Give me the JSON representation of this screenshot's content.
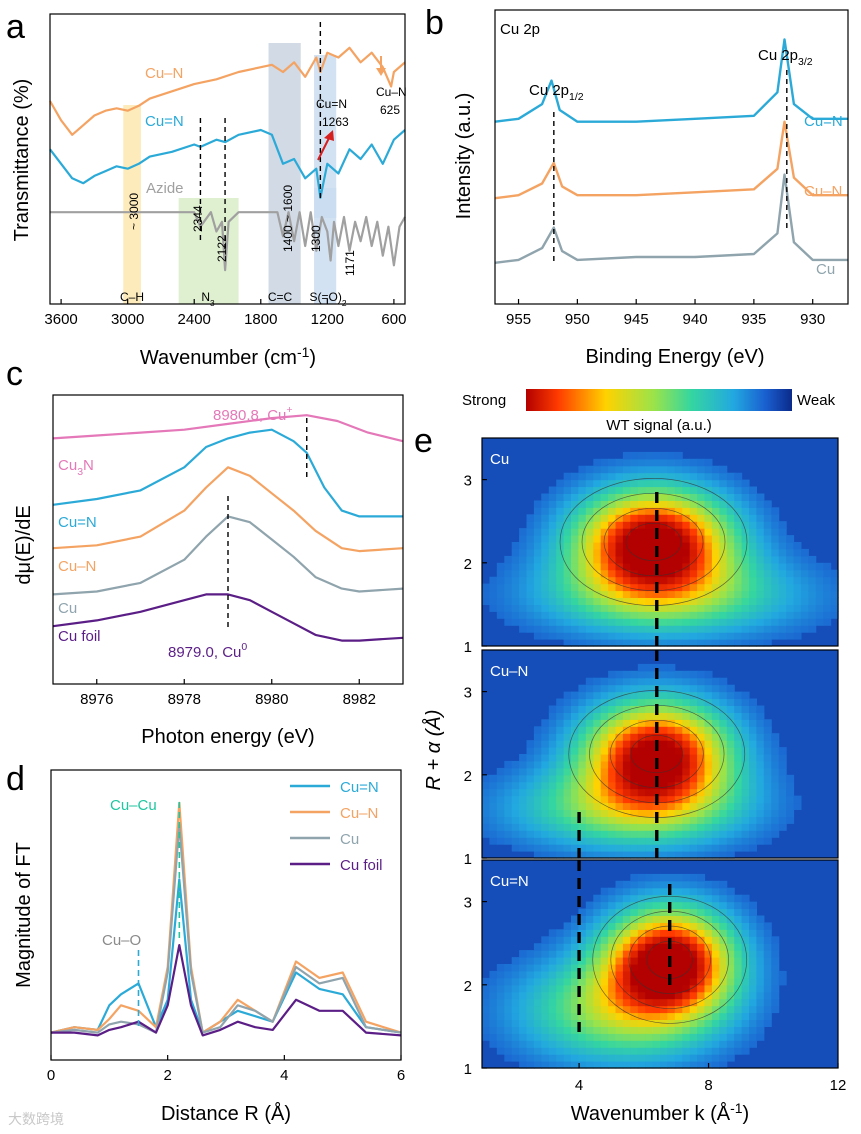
{
  "figure": {
    "watermark": "大数跨境"
  },
  "chart_data": [
    {
      "panel": "a",
      "type": "line",
      "xlabel": "Wavenumber (cm",
      "xlabel_sup": "-1",
      "xlabel_end": ")",
      "ylabel": "Transmittance (%)",
      "xlim": [
        3700,
        500
      ],
      "xticks": [
        3600,
        3000,
        2400,
        1800,
        1200,
        600
      ],
      "series": [
        {
          "name": "Cu–N",
          "color": "#F4A362",
          "x": [
            3700,
            3600,
            3500,
            3400,
            3300,
            3200,
            3100,
            3000,
            2900,
            2800,
            2600,
            2400,
            2200,
            2000,
            1800,
            1700,
            1600,
            1500,
            1400,
            1300,
            1263,
            1200,
            1100,
            1000,
            900,
            800,
            700,
            625,
            600,
            500
          ],
          "y": [
            64,
            56,
            50,
            54,
            58,
            60,
            61,
            60,
            62,
            65,
            68,
            71,
            73,
            76,
            78,
            79,
            76,
            80,
            74,
            82,
            76,
            84,
            82,
            86,
            80,
            84,
            78,
            70,
            76,
            80
          ]
        },
        {
          "name": "Cu=N",
          "color": "#2BAAD8",
          "x": [
            3700,
            3600,
            3500,
            3400,
            3300,
            3200,
            3100,
            3000,
            2900,
            2800,
            2600,
            2400,
            2344,
            2200,
            2122,
            2000,
            1800,
            1700,
            1600,
            1500,
            1400,
            1300,
            1263,
            1200,
            1100,
            1000,
            900,
            800,
            700,
            600,
            500
          ],
          "y": [
            44,
            38,
            32,
            30,
            33,
            35,
            37,
            36,
            38,
            41,
            43,
            46,
            45,
            48,
            47,
            50,
            52,
            50,
            38,
            40,
            32,
            36,
            24,
            38,
            34,
            44,
            40,
            46,
            38,
            48,
            52
          ]
        },
        {
          "name": "Azide",
          "color": "#A0A0A0",
          "x": [
            3700,
            3400,
            3000,
            2700,
            2400,
            2344,
            2250,
            2200,
            2150,
            2122,
            2090,
            2000,
            1800,
            1650,
            1600,
            1550,
            1500,
            1450,
            1400,
            1350,
            1300,
            1250,
            1200,
            1171,
            1140,
            1100,
            1050,
            1000,
            950,
            900,
            850,
            800,
            750,
            700,
            650,
            600,
            550,
            500
          ],
          "y": [
            18,
            18,
            18,
            18,
            18,
            12,
            18,
            10,
            14,
            -6,
            14,
            18,
            18,
            18,
            8,
            18,
            6,
            18,
            4,
            18,
            2,
            16,
            10,
            -2,
            14,
            4,
            16,
            2,
            14,
            6,
            16,
            4,
            14,
            0,
            12,
            -4,
            12,
            16
          ]
        }
      ],
      "series_labels": [
        "Cu–N",
        "Cu=N",
        "Azide"
      ],
      "bands": [
        {
          "label": "C–H",
          "annotation": "~ 3000",
          "color": "#FDE7B0"
        },
        {
          "label": "N",
          "label_sub": "3",
          "annotation": "2344",
          "annotation2": "2122",
          "color": "#D9EDC8"
        },
        {
          "label": "C=C",
          "annotation": "1400 ~ 1600",
          "color": "#C9D3E0"
        },
        {
          "label": "S(=O)",
          "label_sub": "2",
          "annotation": "1300",
          "annotation2": "1171",
          "color": "#CBDDF0"
        }
      ],
      "annotations": {
        "cu_n_bond": "Cu–N",
        "cu_n_bond_value": "625",
        "cu_dn_bond": "Cu=N",
        "cu_dn_bond_value": "1263"
      }
    },
    {
      "panel": "b",
      "type": "line",
      "title": "Cu 2p",
      "xlabel": "Binding Energy (eV)",
      "ylabel": "Intensity (a.u.)",
      "xlim": [
        957,
        927
      ],
      "xticks": [
        955,
        950,
        945,
        940,
        935,
        930
      ],
      "peak_labels": {
        "p12": "Cu 2p",
        "p12_sub": "1/2",
        "p32": "Cu 2p",
        "p32_sub": "3/2"
      },
      "series": [
        {
          "name": "Cu=N",
          "color": "#2BAAD8",
          "x": [
            957,
            955,
            953,
            952.2,
            951.5,
            950,
            945,
            940,
            935,
            933,
            932.4,
            931.6,
            930,
            927
          ],
          "y": [
            52,
            53,
            58,
            66,
            56,
            52,
            52,
            53,
            54,
            62,
            80,
            58,
            53,
            53
          ]
        },
        {
          "name": "Cu–N",
          "color": "#F4A362",
          "x": [
            957,
            955,
            953,
            952,
            951.3,
            950,
            945,
            940,
            935,
            933,
            932.4,
            931.6,
            930,
            927
          ],
          "y": [
            26,
            27,
            31,
            38,
            30,
            27,
            27,
            28,
            29,
            36,
            52,
            33,
            27,
            27
          ]
        },
        {
          "name": "Cu",
          "color": "#8FA4AD",
          "x": [
            957,
            955,
            953,
            952,
            951.3,
            950,
            945,
            940,
            935,
            933,
            932.4,
            931.6,
            930,
            927
          ],
          "y": [
            4,
            5,
            9,
            16,
            8,
            5,
            6,
            6,
            7,
            14,
            34,
            11,
            5,
            5
          ]
        }
      ]
    },
    {
      "panel": "c",
      "type": "line",
      "xlabel": "Photon energy (eV)",
      "ylabel": "dμ(E)/dE",
      "xlim": [
        8975,
        8983
      ],
      "xticks": [
        8976,
        8978,
        8980,
        8982
      ],
      "annotations": {
        "cu_plus": "8980.8, Cu",
        "cu_plus_sup": "+",
        "cu_zero": "8979.0, Cu",
        "cu_zero_sup": "0"
      },
      "series": [
        {
          "name": "Cu",
          "name_sub": "3",
          "name_end": "N",
          "color": "#E478B8",
          "x": [
            8975,
            8976,
            8977,
            8978,
            8979,
            8980,
            8980.8,
            8981.5,
            8982.2,
            8983
          ],
          "y": [
            85,
            86,
            87,
            88,
            90,
            92,
            93,
            91,
            87,
            84
          ]
        },
        {
          "name": "Cu=N",
          "color": "#2BAAD8",
          "x": [
            8975,
            8976,
            8977,
            8978,
            8978.5,
            8979,
            8979.5,
            8980,
            8980.5,
            8980.8,
            8981.2,
            8981.6,
            8982,
            8983
          ],
          "y": [
            62,
            64,
            67,
            75,
            82,
            85,
            87,
            88,
            84,
            80,
            68,
            60,
            58,
            58
          ]
        },
        {
          "name": "Cu–N",
          "color": "#F4A362",
          "x": [
            8975,
            8976,
            8977,
            8978,
            8978.5,
            8979,
            8979.5,
            8980,
            8980.5,
            8981,
            8981.6,
            8982,
            8983
          ],
          "y": [
            47,
            48,
            51,
            60,
            68,
            75,
            72,
            66,
            60,
            53,
            47,
            46,
            47
          ]
        },
        {
          "name": "Cu",
          "color": "#8FA4AD",
          "x": [
            8975,
            8976,
            8977,
            8978,
            8978.5,
            8979,
            8979.5,
            8980,
            8980.5,
            8981,
            8981.6,
            8982,
            8983
          ],
          "y": [
            31,
            32,
            35,
            43,
            51,
            58,
            56,
            50,
            44,
            37,
            33,
            32,
            33
          ]
        },
        {
          "name": "Cu foil",
          "color": "#5B1E86",
          "x": [
            8975,
            8976,
            8977,
            8978,
            8978.5,
            8979,
            8979.5,
            8980,
            8980.5,
            8981,
            8981.6,
            8982,
            8983
          ],
          "y": [
            20,
            22,
            25,
            29,
            31,
            31,
            29,
            25,
            21,
            17,
            15,
            15,
            16
          ]
        }
      ]
    },
    {
      "panel": "d",
      "type": "line",
      "xlabel": "Distance R (Å)",
      "ylabel": "Magnitude of FT",
      "xlim": [
        0,
        6
      ],
      "xticks": [
        0,
        2,
        4,
        6
      ],
      "annotations": {
        "cu_cu": "Cu–Cu",
        "cu_o": "Cu–O"
      },
      "series": [
        {
          "name": "Cu=N",
          "color": "#2BAAD8",
          "x": [
            0,
            0.4,
            0.8,
            1.0,
            1.2,
            1.5,
            1.8,
            2.0,
            2.2,
            2.4,
            2.6,
            2.9,
            3.2,
            3.5,
            3.8,
            4.2,
            4.6,
            5.0,
            5.4,
            6.0
          ],
          "y": [
            4,
            6,
            5,
            14,
            18,
            22,
            6,
            16,
            60,
            16,
            4,
            8,
            12,
            10,
            8,
            26,
            20,
            18,
            6,
            4
          ]
        },
        {
          "name": "Cu–N",
          "color": "#F4A362",
          "x": [
            0,
            0.4,
            0.8,
            1.0,
            1.2,
            1.5,
            1.8,
            2.0,
            2.2,
            2.4,
            2.6,
            2.9,
            3.2,
            3.5,
            3.8,
            4.2,
            4.6,
            5.0,
            5.4,
            6.0
          ],
          "y": [
            4,
            6,
            5,
            9,
            14,
            12,
            6,
            28,
            88,
            28,
            4,
            8,
            16,
            12,
            8,
            30,
            24,
            26,
            8,
            4
          ]
        },
        {
          "name": "Cu",
          "color": "#8FA4AD",
          "x": [
            0,
            0.4,
            0.8,
            1.0,
            1.2,
            1.5,
            1.8,
            2.0,
            2.2,
            2.4,
            2.6,
            2.9,
            3.2,
            3.5,
            3.8,
            4.2,
            4.6,
            5.0,
            5.4,
            6.0
          ],
          "y": [
            4,
            5,
            4,
            7,
            8,
            7,
            4,
            26,
            80,
            26,
            4,
            6,
            14,
            12,
            8,
            28,
            22,
            24,
            6,
            4
          ]
        },
        {
          "name": "Cu foil",
          "color": "#5B1E86",
          "x": [
            0,
            0.4,
            0.8,
            1.0,
            1.2,
            1.5,
            1.8,
            2.0,
            2.2,
            2.4,
            2.6,
            2.9,
            3.2,
            3.5,
            3.8,
            4.2,
            4.6,
            5.0,
            5.4,
            6.0
          ],
          "y": [
            4,
            4,
            3,
            5,
            6,
            8,
            4,
            14,
            36,
            14,
            3,
            5,
            8,
            6,
            5,
            16,
            12,
            12,
            4,
            3
          ]
        }
      ]
    },
    {
      "panel": "e",
      "type": "heatmap",
      "xlabel": "Wavenumber k (Å",
      "xlabel_sup": "-1",
      "xlabel_end": ")",
      "ylabel": "R + α (Å)",
      "xlim": [
        1,
        12
      ],
      "ylim": [
        1,
        3.5
      ],
      "xticks": [
        4,
        8,
        12
      ],
      "yticks": [
        1,
        2,
        3
      ],
      "colorbar": {
        "low": "Strong",
        "high": "Weak",
        "label": "WT signal (a.u.)"
      },
      "subpanels": [
        {
          "label": "Cu",
          "peaks": [
            {
              "k": 6.3,
              "r": 2.25,
              "amp": 1.0,
              "sk": 1.7,
              "sr": 0.45
            },
            {
              "k": 6.8,
              "r": 1.6,
              "amp": 0.35,
              "sk": 3.0,
              "sr": 0.35
            }
          ],
          "dashes": [
            6.4
          ]
        },
        {
          "label": "Cu–N",
          "peaks": [
            {
              "k": 6.4,
              "r": 2.25,
              "amp": 0.95,
              "sk": 1.6,
              "sr": 0.45
            },
            {
              "k": 5.5,
              "r": 1.6,
              "amp": 0.4,
              "sk": 2.6,
              "sr": 0.35
            }
          ],
          "dashes": [
            4.0,
            6.4
          ]
        },
        {
          "label": "Cu=N",
          "peaks": [
            {
              "k": 6.8,
              "r": 2.3,
              "amp": 0.95,
              "sk": 1.4,
              "sr": 0.45
            },
            {
              "k": 5.2,
              "r": 1.7,
              "amp": 0.45,
              "sk": 2.2,
              "sr": 0.45
            }
          ],
          "dashes": [
            4.0,
            6.8
          ]
        }
      ]
    }
  ]
}
